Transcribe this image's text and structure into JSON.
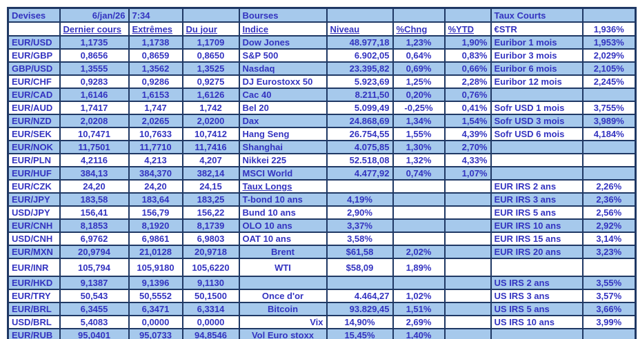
{
  "colors": {
    "row_blue": "#A6C9EC",
    "row_white": "#FFFFFF",
    "text_blue": "#3333C0",
    "border_navy": "#1F3864"
  },
  "header": {
    "devises": "Devises",
    "date": "6/jan/26",
    "time": "7:34",
    "bourses": "Bourses",
    "taux_courts": "Taux Courts"
  },
  "subheader": {
    "dernier_cours": "Dernier cours",
    "extremes": "Extrêmes",
    "du_jour": "Du jour",
    "indice": "Indice",
    "niveau": "Niveau",
    "chng": "%Chng",
    "ytd": "%YTD",
    "estr_label": "€STR",
    "estr_value": "1,936%"
  },
  "table": {
    "col_keys": [
      "pair",
      "dernier",
      "extremes",
      "dujour",
      "indice",
      "niveau",
      "chng",
      "ytd",
      "rate-label",
      "rate-value"
    ],
    "default_align": [
      "l",
      "c",
      "c",
      "c",
      "l",
      "r",
      "c",
      "r",
      "l",
      "c"
    ],
    "rows": [
      {
        "cells": [
          "EUR/USD",
          "1,1735",
          "1,1738",
          "1,1709",
          "Dow Jones",
          "48.977,18",
          "1,23%",
          "1,90%",
          "Euribor 1 mois",
          "1,953%"
        ]
      },
      {
        "cells": [
          "EUR/GBP",
          "0,8656",
          "0,8659",
          "0,8650",
          "S&P 500",
          "6.902,05",
          "0,64%",
          "0,83%",
          "Euribor 3 mois",
          "2,029%"
        ]
      },
      {
        "cells": [
          "GBP/USD",
          "1,3555",
          "1,3562",
          "1,3525",
          "Nasdaq",
          "23.395,82",
          "0,69%",
          "0,66%",
          "Euribor 6 mois",
          "2,105%"
        ]
      },
      {
        "cells": [
          "EUR/CHF",
          "0,9283",
          "0,9286",
          "0,9275",
          "DJ Eurostoxx 50",
          "5.923,69",
          "1,25%",
          "2,28%",
          "Euribor 12 mois",
          "2,245%"
        ]
      },
      {
        "cells": [
          "EUR/CAD",
          "1,6146",
          "1,6153",
          "1,6126",
          "Cac 40",
          "8.211,50",
          "0,20%",
          "0,76%",
          "",
          ""
        ]
      },
      {
        "cells": [
          "EUR/AUD",
          "1,7417",
          "1,747",
          "1,742",
          "Bel 20",
          "5.099,49",
          "-0,25%",
          "0,41%",
          "Sofr USD 1 mois",
          "3,755%"
        ]
      },
      {
        "cells": [
          "EUR/NZD",
          "2,0208",
          "2,0265",
          "2,0200",
          "Dax",
          "24.868,69",
          "1,34%",
          "1,54%",
          "Sofr USD 3 mois",
          "3,989%"
        ]
      },
      {
        "cells": [
          "EUR/SEK",
          "10,7471",
          "10,7633",
          "10,7412",
          "Hang Seng",
          "26.754,55",
          "1,55%",
          "4,39%",
          "Sofr USD 6 mois",
          "4,184%"
        ]
      },
      {
        "cells": [
          "EUR/NOK",
          "11,7501",
          "11,7710",
          "11,7416",
          "Shanghai",
          "4.075,85",
          "1,30%",
          "2,70%",
          "",
          ""
        ]
      },
      {
        "cells": [
          "EUR/PLN",
          "4,2116",
          "4,213",
          "4,207",
          "Nikkei 225",
          "52.518,08",
          "1,32%",
          "4,33%",
          "",
          ""
        ]
      },
      {
        "cells": [
          "EUR/HUF",
          "384,13",
          "384,370",
          "382,14",
          "MSCI World",
          "4.477,92",
          "0,74%",
          "1,07%",
          "",
          ""
        ]
      },
      {
        "cells": [
          "EUR/CZK",
          "24,20",
          "24,20",
          "24,15",
          {
            "t": "Taux Longs",
            "a": "l",
            "u": true
          },
          "",
          "",
          "",
          "EUR IRS 2 ans",
          "2,26%"
        ]
      },
      {
        "cells": [
          "EUR/JPY",
          "183,58",
          "183,64",
          "183,25",
          "T-bond 10 ans",
          {
            "t": "4,19%",
            "a": "c"
          },
          "",
          "",
          "EUR IRS 3 ans",
          "2,36%"
        ]
      },
      {
        "cells": [
          "USD/JPY",
          "156,41",
          "156,79",
          "156,22",
          "Bund 10 ans",
          {
            "t": "2,90%",
            "a": "c"
          },
          "",
          "",
          "EUR IRS 5 ans",
          "2,56%"
        ]
      },
      {
        "cells": [
          "EUR/CNH",
          "8,1853",
          "8,1920",
          "8,1739",
          "OLO 10 ans",
          {
            "t": "3,37%",
            "a": "c"
          },
          "",
          "",
          "EUR IRS 10 ans",
          "2,92%"
        ]
      },
      {
        "cells": [
          "USD/CNH",
          "6,9762",
          "6,9861",
          "6,9803",
          "OAT 10 ans",
          {
            "t": "3,58%",
            "a": "c"
          },
          "",
          "",
          "EUR IRS 15 ans",
          "3,14%"
        ]
      },
      {
        "cells": [
          "EUR/MXN",
          "20,9794",
          "21,0128",
          "20,9718",
          {
            "t": "Brent",
            "a": "c"
          },
          {
            "t": "$61,58",
            "a": "c"
          },
          "2,02%",
          "",
          "EUR IRS 20 ans",
          "3,23%"
        ]
      },
      {
        "cells": [
          "EUR/INR",
          "105,794",
          "105,9180",
          "105,6220",
          {
            "t": "WTI",
            "a": "c"
          },
          {
            "t": "$58,09",
            "a": "c"
          },
          "1,89%",
          "",
          "",
          ""
        ],
        "tall": true
      },
      {
        "cells": [
          "EUR/HKD",
          "9,1387",
          "9,1396",
          "9,1130",
          "",
          "",
          "",
          "",
          "US IRS 2 ans",
          "3,55%"
        ]
      },
      {
        "cells": [
          "EUR/TRY",
          "50,543",
          "50,5552",
          "50,1500",
          {
            "t": "Once d'or",
            "a": "c"
          },
          "4.464,27",
          "1,02%",
          "",
          "US IRS 3 ans",
          "3,57%"
        ]
      },
      {
        "cells": [
          "EUR/BRL",
          "6,3455",
          "6,3471",
          "6,3314",
          {
            "t": "Bitcoin",
            "a": "c"
          },
          "93.829,45",
          "1,51%",
          "",
          "US IRS 5 ans",
          "3,66%"
        ]
      },
      {
        "cells": [
          "USD/BRL",
          "5,4083",
          "0,0000",
          "0,0000",
          {
            "t": "Vix",
            "a": "r"
          },
          {
            "t": "14,90%",
            "a": "c"
          },
          "2,69%",
          "",
          "US IRS 10 ans",
          "3,99%"
        ]
      },
      {
        "cells": [
          "EUR/RUB",
          "95,0401",
          "95,0733",
          "94,8546",
          {
            "t": "Vol Euro stoxx",
            "a": "c"
          },
          {
            "t": "15,45%",
            "a": "c"
          },
          "1,40%",
          "",
          "",
          ""
        ]
      }
    ]
  }
}
